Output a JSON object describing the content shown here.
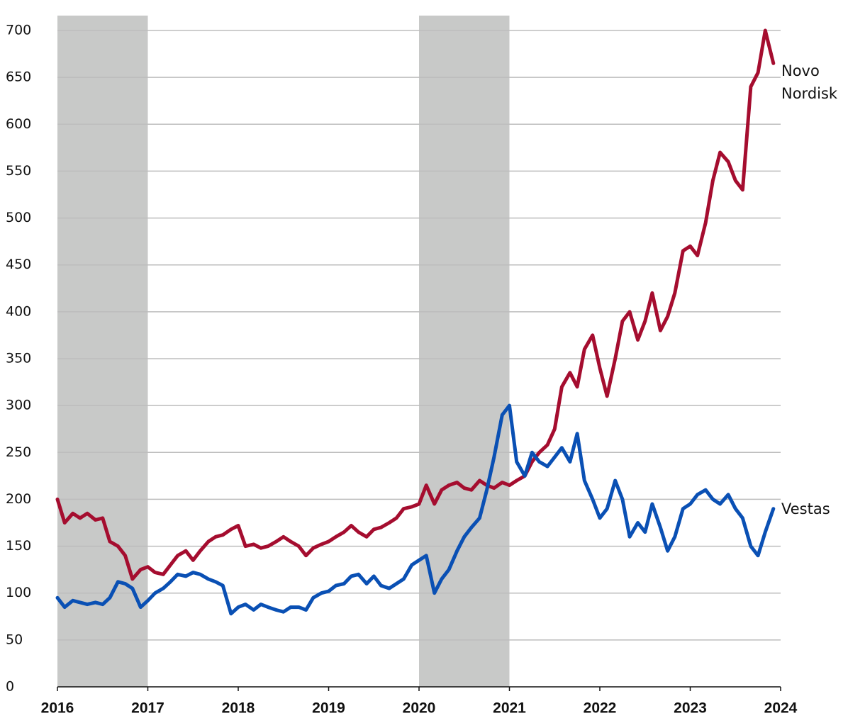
{
  "chart_data": {
    "type": "line",
    "x": [
      2016,
      2016.08,
      2016.17,
      2016.25,
      2016.33,
      2016.42,
      2016.5,
      2016.58,
      2016.67,
      2016.75,
      2016.83,
      2016.92,
      2017,
      2017.08,
      2017.17,
      2017.25,
      2017.33,
      2017.42,
      2017.5,
      2017.58,
      2017.67,
      2017.75,
      2017.83,
      2017.92,
      2018,
      2018.08,
      2018.17,
      2018.25,
      2018.33,
      2018.42,
      2018.5,
      2018.58,
      2018.67,
      2018.75,
      2018.83,
      2018.92,
      2019,
      2019.08,
      2019.17,
      2019.25,
      2019.33,
      2019.42,
      2019.5,
      2019.58,
      2019.67,
      2019.75,
      2019.83,
      2019.92,
      2020,
      2020.08,
      2020.17,
      2020.25,
      2020.33,
      2020.42,
      2020.5,
      2020.58,
      2020.67,
      2020.75,
      2020.83,
      2020.92,
      2021,
      2021.08,
      2021.17,
      2021.25,
      2021.33,
      2021.42,
      2021.5,
      2021.58,
      2021.67,
      2021.75,
      2021.83,
      2021.92,
      2022,
      2022.08,
      2022.17,
      2022.25,
      2022.33,
      2022.42,
      2022.5,
      2022.58,
      2022.67,
      2022.75,
      2022.83,
      2022.92,
      2023,
      2023.08,
      2023.17,
      2023.25,
      2023.33,
      2023.42,
      2023.5,
      2023.58,
      2023.67,
      2023.75,
      2023.83,
      2023.92
    ],
    "series": [
      {
        "name": "Novo Nordisk",
        "color": "#a50d2f",
        "values": [
          200,
          175,
          185,
          180,
          185,
          178,
          180,
          155,
          150,
          140,
          115,
          125,
          128,
          122,
          120,
          130,
          140,
          145,
          135,
          145,
          155,
          160,
          162,
          168,
          172,
          150,
          152,
          148,
          150,
          155,
          160,
          155,
          150,
          140,
          148,
          152,
          155,
          160,
          165,
          172,
          165,
          160,
          168,
          170,
          175,
          180,
          190,
          192,
          195,
          215,
          195,
          210,
          215,
          218,
          212,
          210,
          220,
          215,
          212,
          218,
          215,
          220,
          225,
          240,
          250,
          258,
          275,
          320,
          335,
          320,
          360,
          375,
          340,
          310,
          350,
          390,
          400,
          370,
          390,
          420,
          380,
          395,
          420,
          465,
          470,
          460,
          495,
          540,
          570,
          560,
          540,
          530,
          640,
          655,
          700,
          665
        ]
      },
      {
        "name": "Vestas",
        "color": "#0a50b4",
        "values": [
          95,
          85,
          92,
          90,
          88,
          90,
          88,
          95,
          112,
          110,
          105,
          85,
          92,
          100,
          105,
          112,
          120,
          118,
          122,
          120,
          115,
          112,
          108,
          78,
          85,
          88,
          82,
          88,
          85,
          82,
          80,
          85,
          85,
          82,
          95,
          100,
          102,
          108,
          110,
          118,
          120,
          110,
          118,
          108,
          105,
          110,
          115,
          130,
          135,
          140,
          100,
          115,
          125,
          145,
          160,
          170,
          180,
          210,
          245,
          290,
          300,
          240,
          225,
          250,
          240,
          235,
          245,
          255,
          240,
          270,
          220,
          200,
          180,
          190,
          220,
          200,
          160,
          175,
          165,
          195,
          170,
          145,
          160,
          190,
          195,
          205,
          210,
          200,
          195,
          205,
          190,
          180,
          150,
          140,
          165,
          190
        ]
      }
    ],
    "shaded_ranges": [
      [
        2016,
        2017
      ],
      [
        2020,
        2021
      ]
    ],
    "xlim": [
      2016,
      2024
    ],
    "xticks": [
      2016,
      2017,
      2018,
      2019,
      2020,
      2021,
      2022,
      2023,
      2024
    ],
    "ylim": [
      0,
      700
    ],
    "yticks": [
      0,
      50,
      100,
      150,
      200,
      250,
      300,
      350,
      400,
      450,
      500,
      550,
      600,
      650,
      700
    ],
    "grid": true
  }
}
